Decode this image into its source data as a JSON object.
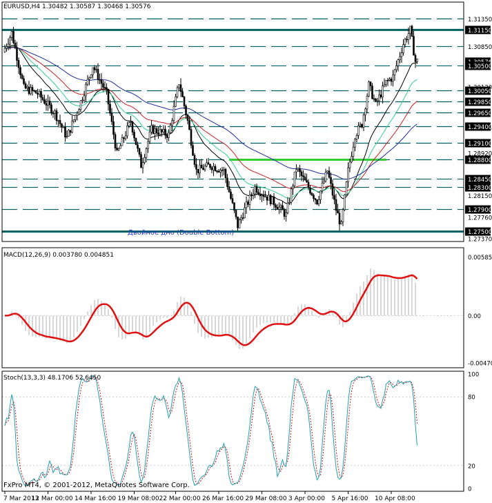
{
  "window": {
    "header": "EURUSD,H4  1.30482 1.30587 1.30468 1.30576",
    "copyright": "FxPro MT4, © 2001-2012, MetaQuotes Software Corp."
  },
  "colors": {
    "candle": "#000000",
    "level_line": "#006060",
    "neckline": "#33cc33",
    "ma_black": "#000000",
    "ma_blue": "#1a2ba0",
    "ma_red": "#cc2020",
    "ma_teal": "#30d090",
    "macd_hist": "#b0b0b0",
    "macd_signal": "#e01010",
    "stoch_main": "#20a0b0",
    "stoch_signal": "#c01010",
    "price_label_bg": "#000000"
  },
  "chart_data": [
    {
      "type": "candlestick",
      "title": "EURUSD,H4",
      "annotation": "Двойное дно (Double Bottom)",
      "ylim": [
        1.2732,
        1.3148
      ],
      "x_ticks": [
        "7 Mar 2013",
        "12 Mar 00:00",
        "14 Mar 16:00",
        "19 Mar 08:00",
        "22 Mar 00:00",
        "26 Mar 16:00",
        "29 Mar 08:00",
        "3 Apr 00:00",
        "5 Apr 16:00",
        "10 Apr 08:00"
      ],
      "x_tick_bar": [
        0,
        25,
        50,
        75,
        99,
        124,
        149,
        174,
        199,
        224
      ],
      "y_ticks": [
        "1.31350",
        "1.30850",
        "1.30120",
        "1.29390",
        "1.28920",
        "1.28150",
        "1.27760",
        "1.27370"
      ],
      "highlight_labels": [
        "1.31150",
        "1.30576",
        "1.30500",
        "1.30050",
        "1.29850",
        "1.29650",
        "1.29400",
        "1.29100",
        "1.28800",
        "1.28450",
        "1.28300",
        "1.27900",
        "1.27500"
      ],
      "levels": [
        1.3135,
        1.3115,
        1.3085,
        1.305,
        1.3005,
        1.2985,
        1.2965,
        1.294,
        1.291,
        1.288,
        1.2845,
        1.283,
        1.279,
        1.275
      ],
      "bold_levels": [
        1.3115,
        1.275
      ],
      "neckline": {
        "value": 1.288,
        "from_bar": 130,
        "to_bar": 221
      },
      "last_price": 1.30576
    },
    {
      "type": "line",
      "title": "MACD(12,26,9) 0.003780 0.004851",
      "ylim": [
        -0.0052,
        0.0065
      ],
      "y_ticks": [
        "0.005853",
        "0.00",
        "-0.004706"
      ],
      "series": [
        {
          "role": "histogram",
          "values": []
        },
        {
          "role": "signal",
          "values": []
        }
      ]
    },
    {
      "type": "line",
      "title": "Stoch(13,3,3) 48.1706 52.6450",
      "ylim": [
        0,
        100
      ],
      "y_ticks": [
        "100",
        "80",
        "20",
        "0"
      ],
      "series": [
        {
          "role": "main",
          "values": []
        },
        {
          "role": "signal",
          "values": []
        }
      ]
    }
  ]
}
